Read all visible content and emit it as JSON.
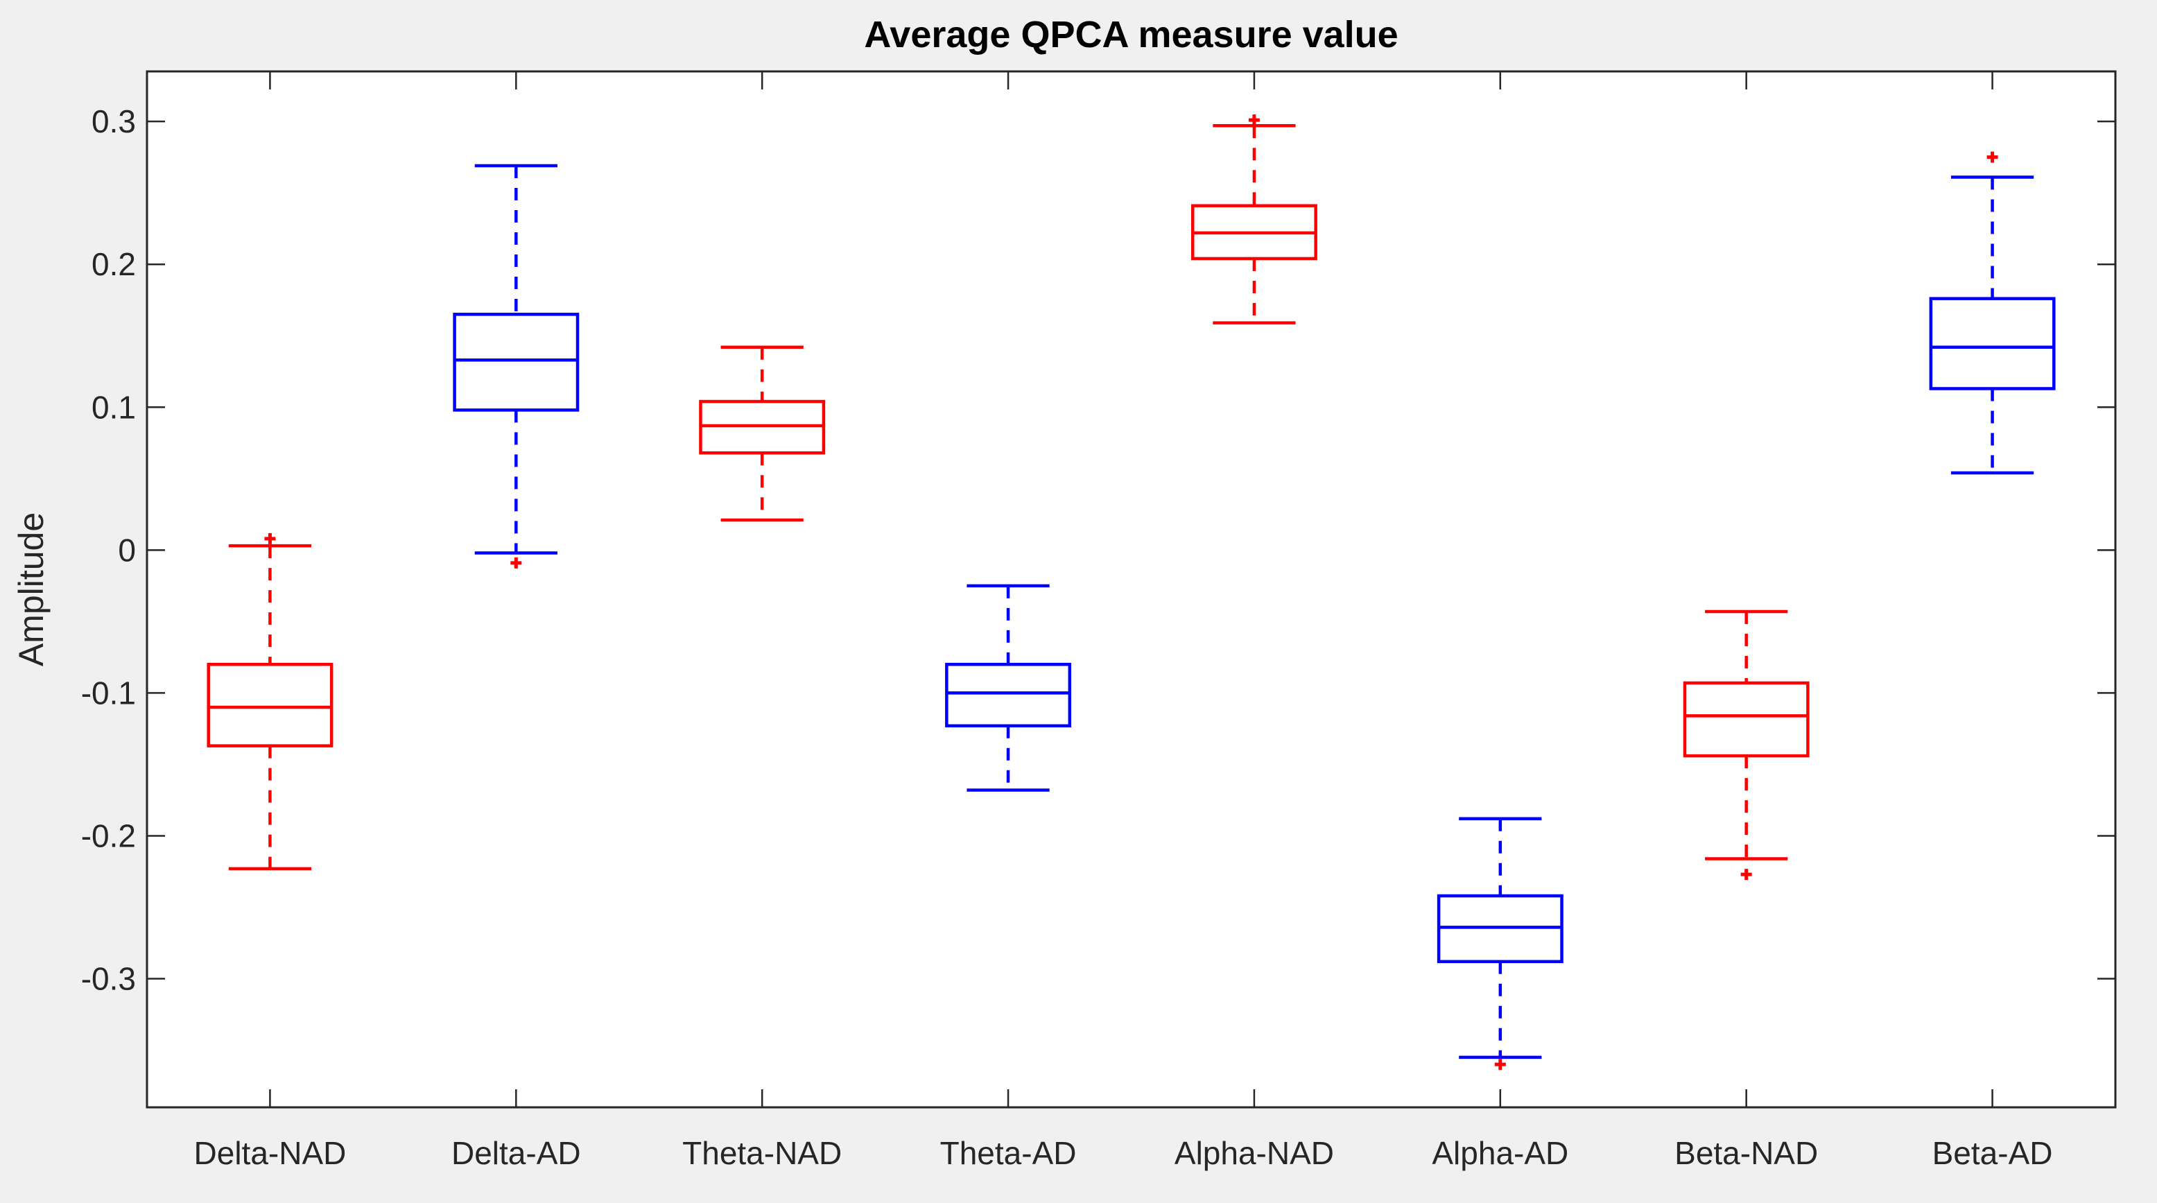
{
  "chart_data": {
    "type": "boxplot",
    "title": "Average QPCA measure value",
    "xlabel": "",
    "ylabel": "Amplitude",
    "ylim": [
      -0.39,
      0.335
    ],
    "xlim": [
      0.5,
      8.5
    ],
    "yticks": [
      -0.3,
      -0.2,
      -0.1,
      0,
      0.1,
      0.2,
      0.3
    ],
    "ytick_labels": [
      "-0.3",
      "-0.2",
      "-0.1",
      "0",
      "0.1",
      "0.2",
      "0.3"
    ],
    "grid": false,
    "categories": [
      "Delta-NAD",
      "Delta-AD",
      "Theta-NAD",
      "Theta-AD",
      "Alpha-NAD",
      "Alpha-AD",
      "Beta-NAD",
      "Beta-AD"
    ],
    "colors": {
      "NAD": "#ff0000",
      "AD": "#0000ff",
      "outlier": "#ff0000"
    },
    "boxes": [
      {
        "category": "Delta-NAD",
        "group": "NAD",
        "whisker_low": -0.223,
        "q1": -0.137,
        "median": -0.11,
        "q3": -0.08,
        "whisker_high": 0.003,
        "outliers": [
          0.008
        ]
      },
      {
        "category": "Delta-AD",
        "group": "AD",
        "whisker_low": -0.002,
        "q1": 0.098,
        "median": 0.133,
        "q3": 0.165,
        "whisker_high": 0.269,
        "outliers": [
          -0.009
        ]
      },
      {
        "category": "Theta-NAD",
        "group": "NAD",
        "whisker_low": 0.021,
        "q1": 0.068,
        "median": 0.087,
        "q3": 0.104,
        "whisker_high": 0.142,
        "outliers": []
      },
      {
        "category": "Theta-AD",
        "group": "AD",
        "whisker_low": -0.168,
        "q1": -0.123,
        "median": -0.1,
        "q3": -0.08,
        "whisker_high": -0.025,
        "outliers": []
      },
      {
        "category": "Alpha-NAD",
        "group": "NAD",
        "whisker_low": 0.159,
        "q1": 0.204,
        "median": 0.222,
        "q3": 0.241,
        "whisker_high": 0.297,
        "outliers": [
          0.301
        ]
      },
      {
        "category": "Alpha-AD",
        "group": "AD",
        "whisker_low": -0.355,
        "q1": -0.288,
        "median": -0.264,
        "q3": -0.242,
        "whisker_high": -0.188,
        "outliers": [
          -0.36
        ]
      },
      {
        "category": "Beta-NAD",
        "group": "NAD",
        "whisker_low": -0.216,
        "q1": -0.144,
        "median": -0.116,
        "q3": -0.093,
        "whisker_high": -0.043,
        "outliers": [
          -0.227
        ]
      },
      {
        "category": "Beta-AD",
        "group": "AD",
        "whisker_low": 0.054,
        "q1": 0.113,
        "median": 0.142,
        "q3": 0.176,
        "whisker_high": 0.261,
        "outliers": [
          0.275
        ]
      }
    ]
  }
}
